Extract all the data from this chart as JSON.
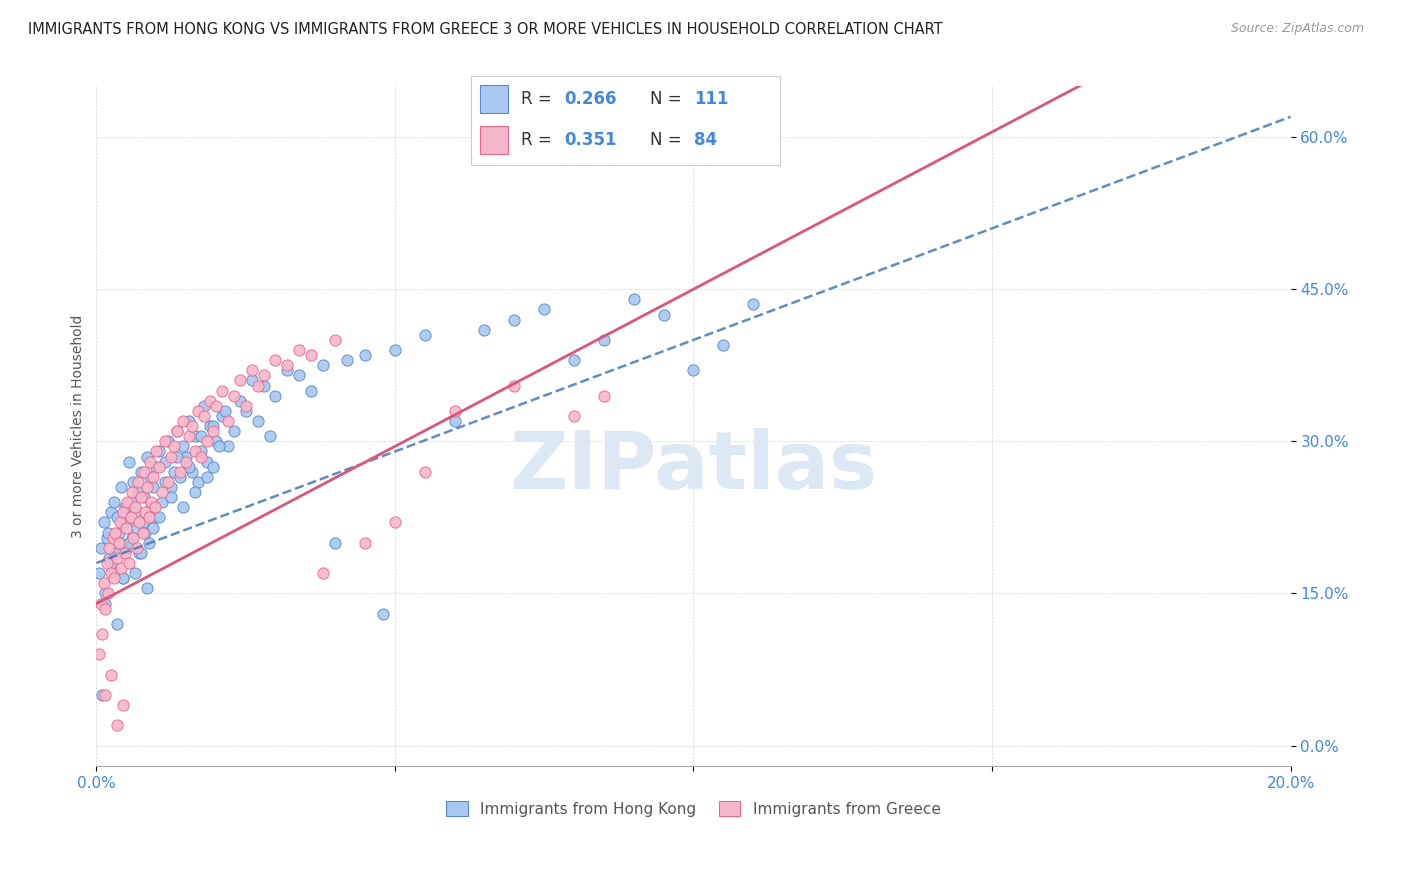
{
  "title": "IMMIGRANTS FROM HONG KONG VS IMMIGRANTS FROM GREECE 3 OR MORE VEHICLES IN HOUSEHOLD CORRELATION CHART",
  "source": "Source: ZipAtlas.com",
  "ylabel": "3 or more Vehicles in Household",
  "yticks": [
    "0.0%",
    "15.0%",
    "30.0%",
    "45.0%",
    "60.0%"
  ],
  "ytick_vals": [
    0,
    15,
    30,
    45,
    60
  ],
  "xlim": [
    0.0,
    20.0
  ],
  "ylim": [
    -2.0,
    65.0
  ],
  "hk_color": "#a8c8f0",
  "gr_color": "#f5b8cb",
  "hk_line_color": "#5588cc",
  "gr_line_color": "#ee6688",
  "hk_trendline_color": "#4477bb",
  "gr_trendline_color": "#dd5577",
  "watermark": "ZIPatlas",
  "watermark_color": "#dde8f5",
  "title_color": "#222222",
  "axis_label_color": "#4488dd",
  "r_n_color": "#4488dd",
  "hk_scatter_x": [
    0.05,
    0.08,
    0.1,
    0.12,
    0.15,
    0.18,
    0.2,
    0.22,
    0.25,
    0.28,
    0.3,
    0.32,
    0.35,
    0.38,
    0.4,
    0.42,
    0.45,
    0.48,
    0.5,
    0.52,
    0.55,
    0.58,
    0.6,
    0.62,
    0.65,
    0.68,
    0.7,
    0.72,
    0.75,
    0.78,
    0.8,
    0.82,
    0.85,
    0.88,
    0.9,
    0.92,
    0.95,
    0.98,
    1.0,
    1.05,
    1.1,
    1.15,
    1.2,
    1.25,
    1.3,
    1.35,
    1.4,
    1.45,
    1.5,
    1.55,
    1.6,
    1.65,
    1.7,
    1.75,
    1.8,
    1.85,
    1.9,
    1.95,
    2.0,
    2.1,
    2.2,
    2.3,
    2.4,
    2.5,
    2.6,
    2.7,
    2.8,
    2.9,
    3.0,
    3.2,
    3.4,
    3.6,
    3.8,
    4.0,
    4.2,
    4.5,
    4.8,
    5.0,
    5.5,
    6.0,
    6.5,
    7.0,
    7.5,
    8.0,
    8.5,
    9.0,
    9.5,
    10.0,
    10.5,
    11.0,
    0.15,
    0.25,
    0.35,
    0.45,
    0.55,
    0.65,
    0.75,
    0.85,
    0.95,
    1.05,
    1.15,
    1.25,
    1.35,
    1.45,
    1.55,
    1.65,
    1.75,
    1.85,
    1.95,
    2.05,
    2.15
  ],
  "hk_scatter_y": [
    17.0,
    19.5,
    5.0,
    22.0,
    15.0,
    20.5,
    21.0,
    18.5,
    23.0,
    17.5,
    24.0,
    19.0,
    22.5,
    21.0,
    20.0,
    25.5,
    16.5,
    23.5,
    22.0,
    19.5,
    28.0,
    24.0,
    20.5,
    26.0,
    23.0,
    21.5,
    25.0,
    19.0,
    27.0,
    22.0,
    24.5,
    21.0,
    28.5,
    20.0,
    26.5,
    23.5,
    25.5,
    22.5,
    27.5,
    29.0,
    24.0,
    28.0,
    30.0,
    25.5,
    27.0,
    31.0,
    26.5,
    29.5,
    28.5,
    32.0,
    27.0,
    30.5,
    26.0,
    29.0,
    33.5,
    28.0,
    31.5,
    27.5,
    30.0,
    32.5,
    29.5,
    31.0,
    34.0,
    33.0,
    36.0,
    32.0,
    35.5,
    30.5,
    34.5,
    37.0,
    36.5,
    35.0,
    37.5,
    20.0,
    38.0,
    38.5,
    13.0,
    39.0,
    40.5,
    32.0,
    41.0,
    42.0,
    43.0,
    38.0,
    40.0,
    44.0,
    42.5,
    37.0,
    39.5,
    43.5,
    14.0,
    18.0,
    12.0,
    16.5,
    20.0,
    17.0,
    19.0,
    15.5,
    21.5,
    22.5,
    26.0,
    24.5,
    28.5,
    23.5,
    27.5,
    25.0,
    30.5,
    26.5,
    31.5,
    29.5,
    33.0
  ],
  "gr_scatter_x": [
    0.05,
    0.08,
    0.1,
    0.12,
    0.15,
    0.18,
    0.2,
    0.22,
    0.25,
    0.28,
    0.3,
    0.32,
    0.35,
    0.38,
    0.4,
    0.42,
    0.45,
    0.48,
    0.5,
    0.52,
    0.55,
    0.58,
    0.6,
    0.62,
    0.65,
    0.68,
    0.7,
    0.72,
    0.75,
    0.78,
    0.8,
    0.82,
    0.85,
    0.88,
    0.9,
    0.92,
    0.95,
    0.98,
    1.0,
    1.05,
    1.1,
    1.15,
    1.2,
    1.25,
    1.3,
    1.35,
    1.4,
    1.45,
    1.5,
    1.55,
    1.6,
    1.65,
    1.7,
    1.75,
    1.8,
    1.85,
    1.9,
    1.95,
    2.0,
    2.1,
    2.2,
    2.3,
    2.4,
    2.5,
    2.6,
    2.7,
    2.8,
    3.0,
    3.2,
    3.4,
    3.6,
    3.8,
    4.0,
    4.5,
    5.0,
    5.5,
    6.0,
    7.0,
    8.0,
    8.5,
    0.15,
    0.25,
    0.35,
    0.45
  ],
  "gr_scatter_y": [
    9.0,
    14.0,
    11.0,
    16.0,
    13.5,
    18.0,
    15.0,
    19.5,
    17.0,
    20.5,
    16.5,
    21.0,
    18.5,
    20.0,
    22.0,
    17.5,
    23.0,
    19.0,
    21.5,
    24.0,
    18.0,
    22.5,
    25.0,
    20.5,
    23.5,
    19.5,
    26.0,
    22.0,
    24.5,
    21.0,
    27.0,
    23.0,
    25.5,
    22.5,
    28.0,
    24.0,
    26.5,
    23.5,
    29.0,
    27.5,
    25.0,
    30.0,
    26.0,
    28.5,
    29.5,
    31.0,
    27.0,
    32.0,
    28.0,
    30.5,
    31.5,
    29.0,
    33.0,
    28.5,
    32.5,
    30.0,
    34.0,
    31.0,
    33.5,
    35.0,
    32.0,
    34.5,
    36.0,
    33.5,
    37.0,
    35.5,
    36.5,
    38.0,
    37.5,
    39.0,
    38.5,
    17.0,
    40.0,
    20.0,
    22.0,
    27.0,
    33.0,
    35.5,
    32.5,
    34.5,
    5.0,
    7.0,
    2.0,
    4.0
  ],
  "hk_trend_intercept": 18.0,
  "hk_trend_slope": 2.2,
  "gr_trend_intercept": 14.0,
  "gr_trend_slope": 3.1
}
